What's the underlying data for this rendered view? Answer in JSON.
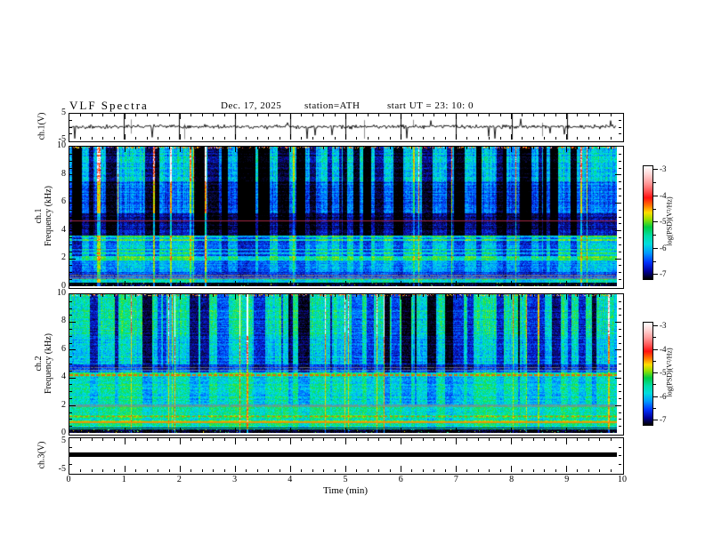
{
  "header": {
    "title": "VLF  Spectra",
    "date": "Dec. 17,  2025",
    "station": "station=ATH",
    "start_ut": "start  UT  =   23: 10: 0"
  },
  "axes": {
    "time": {
      "label": "Time  (min)",
      "ticks": [
        "0",
        "1",
        "2",
        "3",
        "4",
        "5",
        "6",
        "7",
        "8",
        "9",
        "10"
      ],
      "minor_divisions": 5,
      "range_min": [
        0,
        10
      ]
    },
    "ch1_wave": {
      "label": "ch.1(V)",
      "ticks": [
        "5",
        "-5"
      ],
      "range_v": [
        -5,
        5
      ]
    },
    "spec1": {
      "label_line1": "ch.1",
      "label_line2": "Frequency  (kHz)",
      "ticks": [
        "10",
        "8",
        "6",
        "4",
        "2",
        "0"
      ],
      "range_khz": [
        0,
        10
      ]
    },
    "spec2": {
      "label_line1": "ch.2",
      "label_line2": "Frequency  (kHz)",
      "ticks": [
        "10",
        "8",
        "6",
        "4",
        "2",
        "0"
      ],
      "range_khz": [
        0,
        10
      ]
    },
    "ch3_wave": {
      "label": "ch.3(V)",
      "ticks": [
        "5",
        "-5"
      ],
      "range_v": [
        -5,
        5
      ]
    }
  },
  "colorbar": {
    "label": "log(PSD)(V²/Hz)",
    "ticks": [
      "-3",
      "-4",
      "-5",
      "-6",
      "-7"
    ],
    "gradient": [
      [
        0,
        "#ffffff"
      ],
      [
        7,
        "#ffd6d6"
      ],
      [
        15,
        "#ff9a9a"
      ],
      [
        22,
        "#ff5555"
      ],
      [
        28,
        "#ff1010"
      ],
      [
        35,
        "#ff7700"
      ],
      [
        41,
        "#ffdd00"
      ],
      [
        47,
        "#99e000"
      ],
      [
        54,
        "#00cc44"
      ],
      [
        62,
        "#00ddaa"
      ],
      [
        69,
        "#00dddd"
      ],
      [
        77,
        "#0099ff"
      ],
      [
        85,
        "#0033ff"
      ],
      [
        93,
        "#000099"
      ],
      [
        100,
        "#000000"
      ]
    ]
  },
  "chart_data": [
    {
      "type": "line",
      "name": "ch1-waveform",
      "ylabel": "ch.1(V)",
      "ylim_v": [
        -5,
        5
      ],
      "xlim_min": [
        0,
        10
      ],
      "mean_v": 0,
      "noise_peak_to_peak_v": 2,
      "impulsive_spikes": "frequent negative spikes reaching -5 V, occasional positive spikes to +4 V, scattered tall gray impulse lines",
      "data_end_min": 9.9
    },
    {
      "type": "heatmap",
      "name": "ch1-spectrogram",
      "ylabel": "ch.1 Frequency (kHz)",
      "ylim_khz": [
        0,
        10
      ],
      "xlim_min": [
        0,
        10
      ],
      "data_end_min": 9.9,
      "value_units": "log(PSD)(V²/Hz)",
      "value_range": [
        -7,
        -3
      ],
      "bands": [
        {
          "f_khz": [
            0,
            0.25
          ],
          "log_psd": -7.0
        },
        {
          "f_khz": [
            0.25,
            0.5
          ],
          "log_psd": -5.15
        },
        {
          "f_khz": [
            0.5,
            1.0
          ],
          "log_psd": -6.1
        },
        {
          "f_khz": [
            1.0,
            1.85
          ],
          "log_psd": -5.55
        },
        {
          "f_khz": [
            1.85,
            2.15
          ],
          "log_psd": -4.85
        },
        {
          "f_khz": [
            2.15,
            3.25
          ],
          "log_psd": -5.55
        },
        {
          "f_khz": [
            3.25,
            3.65
          ],
          "log_psd": -5.4
        },
        {
          "f_khz": [
            3.65,
            5.2
          ],
          "log_psd": -6.55
        },
        {
          "f_khz": [
            5.2,
            7.5
          ],
          "log_psd": -6.0
        },
        {
          "f_khz": [
            7.5,
            10
          ],
          "log_psd": -5.5
        }
      ],
      "gray_bands": [
        {
          "f_khz": 0.55,
          "h": 2
        },
        {
          "f_khz": 0.78,
          "h": 2
        }
      ],
      "narrow_lines": [
        {
          "f_khz": 2.35,
          "type": "boost"
        },
        {
          "f_khz": 2.6,
          "type": "boost"
        },
        {
          "f_khz": 3.3,
          "type": "boost"
        },
        {
          "f_khz": 3.55,
          "type": "boost"
        },
        {
          "f_khz": 4.7,
          "type": "color",
          "color": "#c23050"
        }
      ],
      "texture": "dense vertical sferic striping; bright thin full-height streaks and wide dark-blue dropout columns, strongest above 5 kHz"
    },
    {
      "type": "heatmap",
      "name": "ch2-spectrogram",
      "ylabel": "ch.2 Frequency (kHz)",
      "ylim_khz": [
        0,
        10
      ],
      "xlim_min": [
        0,
        10
      ],
      "data_end_min": 9.9,
      "value_units": "log(PSD)(V²/Hz)",
      "value_range": [
        -7,
        -3
      ],
      "bands": [
        {
          "f_khz": [
            0,
            0.2
          ],
          "log_psd": -7.0
        },
        {
          "f_khz": [
            0.2,
            0.5
          ],
          "log_psd": -5.2
        },
        {
          "f_khz": [
            0.5,
            0.72
          ],
          "log_psd": -4.95
        },
        {
          "f_khz": [
            0.72,
            0.88
          ],
          "log_psd": -4.45
        },
        {
          "f_khz": [
            0.88,
            1.05
          ],
          "log_psd": -5.1
        },
        {
          "f_khz": [
            1.05,
            1.28
          ],
          "log_psd": -4.7
        },
        {
          "f_khz": [
            1.28,
            1.9
          ],
          "log_psd": -5.1
        },
        {
          "f_khz": [
            1.9,
            2.12
          ],
          "log_psd": -5.3
        },
        {
          "f_khz": [
            2.12,
            4.0
          ],
          "log_psd": -5.2
        },
        {
          "f_khz": [
            4.0,
            4.35
          ],
          "log_psd": -4.9
        },
        {
          "f_khz": [
            4.35,
            4.95
          ],
          "log_psd": -6.1
        },
        {
          "f_khz": [
            4.95,
            7.0
          ],
          "log_psd": -5.45
        },
        {
          "f_khz": [
            7.0,
            10
          ],
          "log_psd": -5.2
        }
      ],
      "gray_bands": [
        {
          "f_khz": 2.0,
          "h": 3
        },
        {
          "f_khz": 4.5,
          "h": 1
        },
        {
          "f_khz": 4.72,
          "h": 1
        }
      ],
      "narrow_lines": [
        {
          "f_khz": 0.3,
          "type": "color",
          "color": "#111111"
        },
        {
          "f_khz": 0.78,
          "type": "color",
          "color": "#ff8800",
          "h": 2
        },
        {
          "f_khz": 1.15,
          "type": "color",
          "color": "#ff5500",
          "dash": [
            3,
            3
          ]
        },
        {
          "f_khz": 4.18,
          "type": "color",
          "color": "#ff5500",
          "dash": [
            4,
            2
          ],
          "h": 2
        },
        {
          "f_khz": 4.45,
          "type": "boost"
        }
      ],
      "texture": "green-dominated; dense vertical striping with dark-blue dropout columns above 5 kHz, layered horizontal bands below 5 kHz"
    },
    {
      "type": "line",
      "name": "ch3-waveform",
      "ylabel": "ch.3(V)",
      "ylim_v": [
        -5,
        5
      ],
      "xlim_min": [
        0,
        10
      ],
      "constant_v": 0,
      "appearance": "thick flat black line at 0 V",
      "data_end_min": 9.9
    }
  ]
}
